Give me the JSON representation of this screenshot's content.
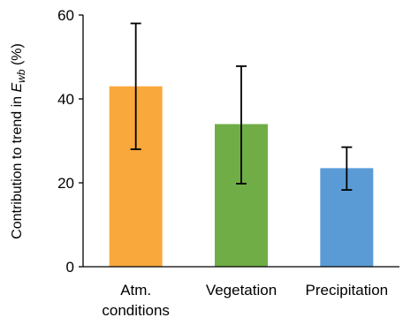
{
  "chart_data": {
    "type": "bar",
    "categories": [
      [
        "Atm.",
        "conditions"
      ],
      [
        "Vegetation"
      ],
      [
        "Precipitation"
      ]
    ],
    "values": [
      43,
      34,
      23.5
    ],
    "error_bars": [
      {
        "lower": 28,
        "upper": 58
      },
      {
        "lower": 19.8,
        "upper": 47.8
      },
      {
        "lower": 18.3,
        "upper": 28.5
      }
    ],
    "colors": [
      "#F9A83C",
      "#70AD47",
      "#5B9BD5"
    ],
    "ylabel": {
      "prefix": "Contribution to trend in ",
      "symbol": "E",
      "subscript": "wb",
      "suffix": " (%)"
    },
    "ylim": [
      0,
      60
    ],
    "yticks": [
      "0",
      "20",
      "40",
      "60"
    ],
    "grid": false,
    "legend": "none"
  }
}
